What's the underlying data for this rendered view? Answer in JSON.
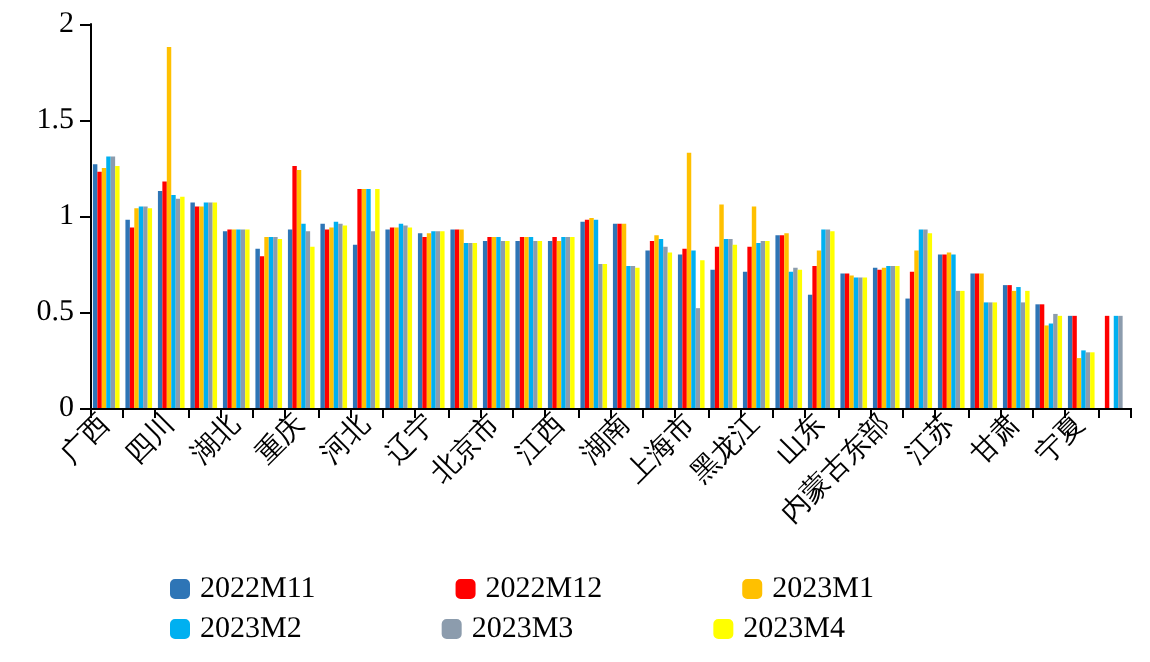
{
  "chart_data": {
    "type": "bar",
    "categories": [
      "广西",
      null,
      "四川",
      null,
      "湖北",
      null,
      "重庆",
      null,
      "河北",
      null,
      "辽宁",
      null,
      "北京市",
      null,
      "江西",
      null,
      "湖南",
      null,
      "上海市",
      null,
      "黑龙江",
      null,
      "山东",
      null,
      "内蒙古东部",
      null,
      "江苏",
      null,
      "甘肃",
      null,
      "宁夏",
      null
    ],
    "series": [
      {
        "name": "2022M11",
        "color": "#2e75b6",
        "values": [
          1.27,
          0.98,
          1.13,
          1.07,
          0.92,
          0.83,
          0.93,
          0.96,
          0.85,
          0.93,
          0.91,
          0.93,
          0.87,
          0.87,
          0.87,
          0.97,
          0.96,
          0.82,
          0.8,
          0.72,
          0.71,
          0.9,
          0.59,
          0.7,
          0.73,
          0.57,
          0.8,
          0.7,
          0.64,
          0.54,
          0.48,
          null
        ]
      },
      {
        "name": "2022M12",
        "color": "#ff0000",
        "values": [
          1.23,
          0.94,
          1.18,
          1.05,
          0.93,
          0.79,
          1.26,
          0.93,
          1.14,
          0.94,
          0.89,
          0.93,
          0.89,
          0.89,
          0.89,
          0.98,
          0.96,
          0.87,
          0.83,
          0.84,
          0.84,
          0.9,
          0.74,
          0.7,
          0.72,
          0.71,
          0.8,
          0.7,
          0.64,
          0.54,
          0.48,
          0.48
        ]
      },
      {
        "name": "2023M1",
        "color": "#ffc000",
        "values": [
          1.25,
          1.04,
          1.88,
          1.05,
          0.93,
          0.89,
          1.24,
          0.94,
          1.14,
          0.94,
          0.91,
          0.93,
          0.89,
          0.89,
          0.87,
          0.99,
          0.96,
          0.9,
          1.33,
          1.06,
          1.05,
          0.91,
          0.82,
          0.69,
          0.73,
          0.82,
          0.81,
          0.7,
          0.61,
          0.43,
          0.26,
          null
        ]
      },
      {
        "name": "2023M2",
        "color": "#00b0f0",
        "values": [
          1.31,
          1.05,
          1.11,
          1.07,
          0.93,
          0.89,
          0.96,
          0.97,
          1.14,
          0.96,
          0.92,
          0.86,
          0.89,
          0.89,
          0.89,
          0.98,
          0.74,
          0.88,
          0.82,
          0.88,
          0.86,
          0.71,
          0.93,
          0.68,
          0.74,
          0.93,
          0.8,
          0.55,
          0.63,
          0.44,
          0.3,
          0.48
        ]
      },
      {
        "name": "2023M3",
        "color": "#8c9cad",
        "values": [
          1.31,
          1.05,
          1.09,
          1.07,
          0.93,
          0.89,
          0.92,
          0.96,
          0.92,
          0.95,
          0.92,
          0.86,
          0.87,
          0.87,
          0.89,
          0.75,
          0.74,
          0.84,
          0.52,
          0.88,
          0.87,
          0.73,
          0.93,
          0.68,
          0.74,
          0.93,
          0.61,
          0.55,
          0.55,
          0.49,
          0.29,
          0.48
        ]
      },
      {
        "name": "2023M4",
        "color": "#ffff00",
        "values": [
          1.26,
          1.04,
          1.1,
          1.07,
          0.93,
          0.88,
          0.84,
          0.95,
          1.14,
          0.94,
          0.92,
          0.86,
          0.87,
          0.87,
          0.89,
          0.75,
          0.73,
          0.81,
          0.77,
          0.85,
          0.87,
          0.72,
          0.92,
          0.68,
          0.74,
          0.91,
          0.61,
          0.55,
          0.61,
          0.48,
          0.29,
          null
        ]
      }
    ],
    "ylim": [
      0,
      2
    ],
    "yticks": [
      0,
      0.5,
      1,
      1.5,
      2
    ],
    "grid": false,
    "legend": "bottom"
  }
}
